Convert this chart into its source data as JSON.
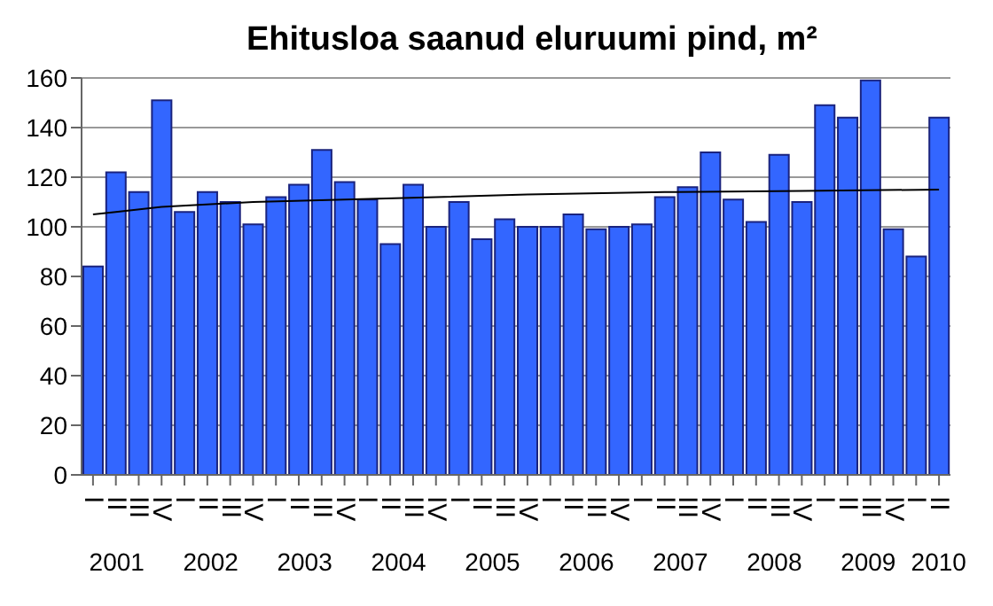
{
  "chart_data": {
    "type": "bar",
    "title": "Ehitusloa saanud eluruumi pind, m²",
    "categories": [
      "I",
      "II",
      "III",
      "IV",
      "I",
      "II",
      "III",
      "IV",
      "I",
      "II",
      "III",
      "IV",
      "I",
      "II",
      "III",
      "IV",
      "I",
      "II",
      "III",
      "IV",
      "I",
      "II",
      "III",
      "IV",
      "I",
      "II",
      "III",
      "IV",
      "I",
      "II",
      "III",
      "IV",
      "I",
      "II",
      "III",
      "IV",
      "I",
      "II"
    ],
    "series": [
      {
        "color": "#3366ff",
        "values": [
          84,
          122,
          114,
          151,
          106,
          114,
          110,
          101,
          112,
          117,
          131,
          118,
          111,
          93,
          117,
          100,
          110,
          95,
          103,
          100,
          100,
          105,
          99,
          100,
          101,
          112,
          116,
          130,
          111,
          102,
          129,
          110,
          149,
          144,
          159,
          99,
          88,
          144
        ]
      },
      {
        "type": "line",
        "color": "#000000",
        "values": [
          105,
          106,
          null,
          108,
          null,
          null,
          null,
          110,
          null,
          null,
          null,
          111,
          null,
          null,
          null,
          112,
          null,
          null,
          null,
          113,
          null,
          null,
          null,
          null,
          null,
          114,
          null,
          null,
          null,
          null,
          null,
          114.5,
          null,
          null,
          null,
          null,
          null,
          115
        ]
      }
    ],
    "annotations": [
      "2001",
      "2002",
      "2003",
      "2004",
      "2005",
      "2006",
      "2007",
      "2008",
      "2009",
      "2010"
    ],
    "ylim": [
      0,
      160
    ],
    "yticks": [
      0,
      20,
      40,
      60,
      80,
      100,
      120,
      140,
      160
    ],
    "grid": "y",
    "marker": "none"
  }
}
